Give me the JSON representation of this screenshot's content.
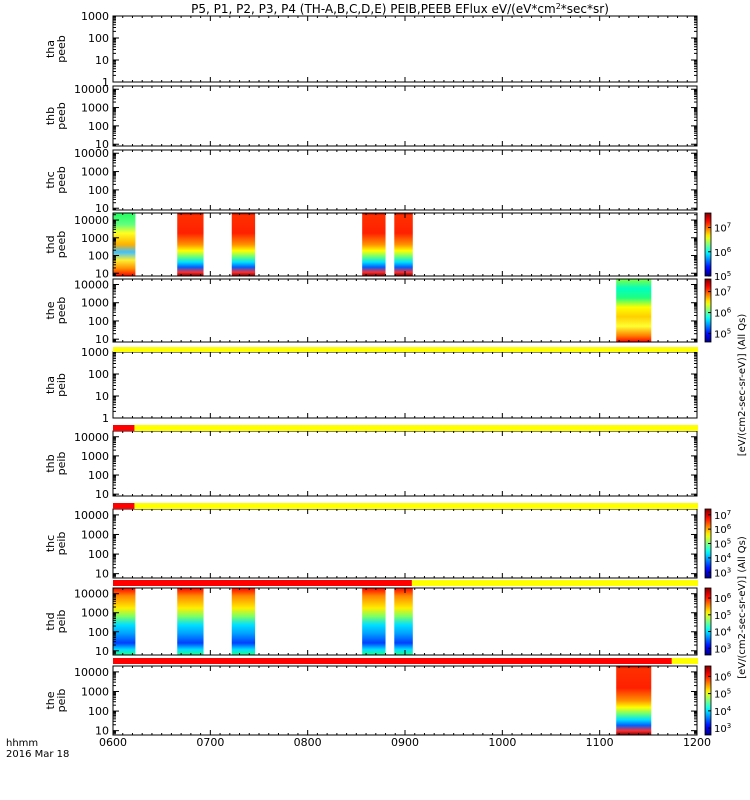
{
  "chart_data": {
    "type": "heatmap",
    "title": "P5, P1, P2, P3, P4 (TH-A,B,C,D,E) PEIB,PEEB EFlux eV/(eV*cm",
    "title_sup": "2",
    "title_end": "*sec*sr)",
    "x_ticks": [
      "0600",
      "0700",
      "0800",
      "0900",
      "1000",
      "1100",
      "1200"
    ],
    "x_range": [
      600,
      1200
    ],
    "x_footer_label": "hhmm",
    "date_label": "2016 Mar 18",
    "panels": [
      {
        "probe": "tha",
        "instrument": "peeb",
        "yticks": [
          "1",
          "10",
          "100",
          "1000"
        ],
        "ymin": 1,
        "ymax": 1000,
        "bands": []
      },
      {
        "probe": "thb",
        "instrument": "peeb",
        "yticks": [
          "10",
          "100",
          "1000",
          "10000"
        ],
        "ymin": 8,
        "ymax": 15000,
        "bands": []
      },
      {
        "probe": "thc",
        "instrument": "peeb",
        "yticks": [
          "10",
          "100",
          "1000",
          "10000"
        ],
        "ymin": 8,
        "ymax": 15000,
        "bands": []
      },
      {
        "probe": "thd",
        "instrument": "peeb",
        "yticks": [
          "10",
          "100",
          "1000",
          "10000"
        ],
        "ymin": 7,
        "ymax": 25000,
        "bands": [
          {
            "start": 600,
            "end": 623,
            "style": "mixed"
          },
          {
            "start": 666,
            "end": 693,
            "style": "hot"
          },
          {
            "start": 722,
            "end": 746,
            "style": "hot"
          },
          {
            "start": 856,
            "end": 880,
            "style": "hot"
          },
          {
            "start": 889,
            "end": 908,
            "style": "hot"
          }
        ]
      },
      {
        "probe": "the",
        "instrument": "peeb",
        "yticks": [
          "10",
          "100",
          "1000",
          "10000"
        ],
        "ymin": 7,
        "ymax": 20000,
        "bands": [
          {
            "start": 1117,
            "end": 1153,
            "style": "yellow"
          }
        ]
      },
      {
        "probe": "tha",
        "instrument": "peib",
        "yticks": [
          "1",
          "10",
          "100",
          "1000"
        ],
        "ymin": 1,
        "ymax": 1000,
        "bands": []
      },
      {
        "probe": "thb",
        "instrument": "peib",
        "yticks": [
          "10",
          "100",
          "1000",
          "10000"
        ],
        "ymin": 8,
        "ymax": 20000,
        "bands": []
      },
      {
        "probe": "thc",
        "instrument": "peib",
        "yticks": [
          "10",
          "100",
          "1000",
          "10000"
        ],
        "ymin": 6,
        "ymax": 20000,
        "bands": []
      },
      {
        "probe": "thd",
        "instrument": "peib",
        "yticks": [
          "10",
          "100",
          "1000",
          "10000"
        ],
        "ymin": 6,
        "ymax": 20000,
        "bands": [
          {
            "start": 600,
            "end": 623,
            "style": "ion"
          },
          {
            "start": 666,
            "end": 693,
            "style": "ion"
          },
          {
            "start": 722,
            "end": 746,
            "style": "ion"
          },
          {
            "start": 856,
            "end": 880,
            "style": "ion"
          },
          {
            "start": 889,
            "end": 908,
            "style": "ion"
          }
        ]
      },
      {
        "probe": "the",
        "instrument": "peib",
        "yticks": [
          "10",
          "100",
          "1000",
          "10000"
        ],
        "ymin": 6,
        "ymax": 20000,
        "bands": [
          {
            "start": 1117,
            "end": 1153,
            "style": "hot"
          }
        ]
      }
    ],
    "status_bars": [
      {
        "before_panel": 5,
        "red_until": 600
      },
      {
        "before_panel": 6,
        "red_until": 622
      },
      {
        "before_panel": 7,
        "red_until": 622
      },
      {
        "before_panel": 8,
        "red_until": 907
      },
      {
        "before_panel": 9,
        "red_until": 1174
      }
    ],
    "colorbars": [
      {
        "panels": [
          3
        ],
        "ticks": [
          "10^5",
          "10^6",
          "10^7"
        ],
        "vmin": 5,
        "vmax": 7.6
      },
      {
        "panels": [
          4
        ],
        "ticks": [
          "10^5",
          "10^6",
          "10^7"
        ],
        "vmin": 4.6,
        "vmax": 7.6
      },
      {
        "panels": [
          7
        ],
        "ticks": [
          "10^3",
          "10^4",
          "10^5",
          "10^6",
          "10^7"
        ],
        "vmin": 2.6,
        "vmax": 7.4
      },
      {
        "panels": [
          8
        ],
        "ticks": [
          "10^3",
          "10^4",
          "10^5",
          "10^6"
        ],
        "vmin": 2.6,
        "vmax": 6.6
      },
      {
        "panels": [
          9
        ],
        "ticks": [
          "10^3",
          "10^4",
          "10^5",
          "10^6"
        ],
        "vmin": 2.6,
        "vmax": 6.6
      }
    ],
    "colorbar_titles": [
      {
        "text": "[eV/(cm2-sec-sr-eV)] (All Qs)",
        "y_top": 155,
        "y_bot": 615
      },
      {
        "text": "[eV/(cm2-sec-sr-eV)] (All Qs)",
        "y_top": 460,
        "y_bot": 755
      }
    ]
  }
}
